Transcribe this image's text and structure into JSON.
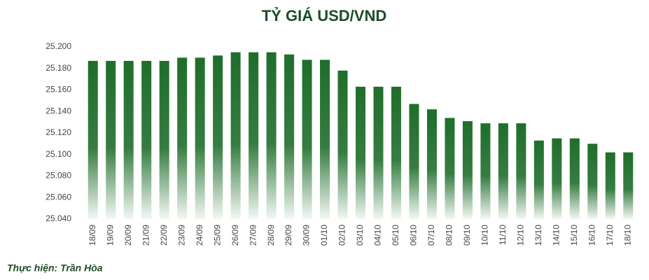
{
  "chart_data": {
    "type": "bar",
    "title": "TỶ GIÁ USD/VND",
    "source": "Thực hiện: Trần Hòa",
    "categories": [
      "18/09",
      "19/09",
      "20/09",
      "21/09",
      "22/09",
      "23/09",
      "24/09",
      "25/09",
      "26/09",
      "27/09",
      "28/09",
      "29/09",
      "30/09",
      "01/10",
      "02/10",
      "03/10",
      "04/10",
      "05/10",
      "06/10",
      "07/10",
      "08/10",
      "09/10",
      "10/10",
      "11/10",
      "12/10",
      "13/10",
      "14/10",
      "15/10",
      "16/10",
      "17/10",
      "18/10"
    ],
    "values": [
      25187,
      25187,
      25187,
      25187,
      25187,
      25190,
      25190,
      25192,
      25195,
      25195,
      25195,
      25193,
      25188,
      25188,
      25178,
      25163,
      25163,
      25163,
      25147,
      25142,
      25134,
      25131,
      25129,
      25129,
      25129,
      25113,
      25115,
      25115,
      25110,
      25102,
      25102
    ],
    "color": "#1f6e2c",
    "ylim": [
      25040,
      25200
    ],
    "yticks": [
      {
        "value": 25040,
        "label": "25.040"
      },
      {
        "value": 25060,
        "label": "25.060"
      },
      {
        "value": 25080,
        "label": "25.080"
      },
      {
        "value": 25100,
        "label": "25.100"
      },
      {
        "value": 25120,
        "label": "25.120"
      },
      {
        "value": 25140,
        "label": "25.140"
      },
      {
        "value": 25160,
        "label": "25.160"
      },
      {
        "value": 25180,
        "label": "25.180"
      },
      {
        "value": 25200,
        "label": "25.200"
      }
    ],
    "grid": false
  }
}
